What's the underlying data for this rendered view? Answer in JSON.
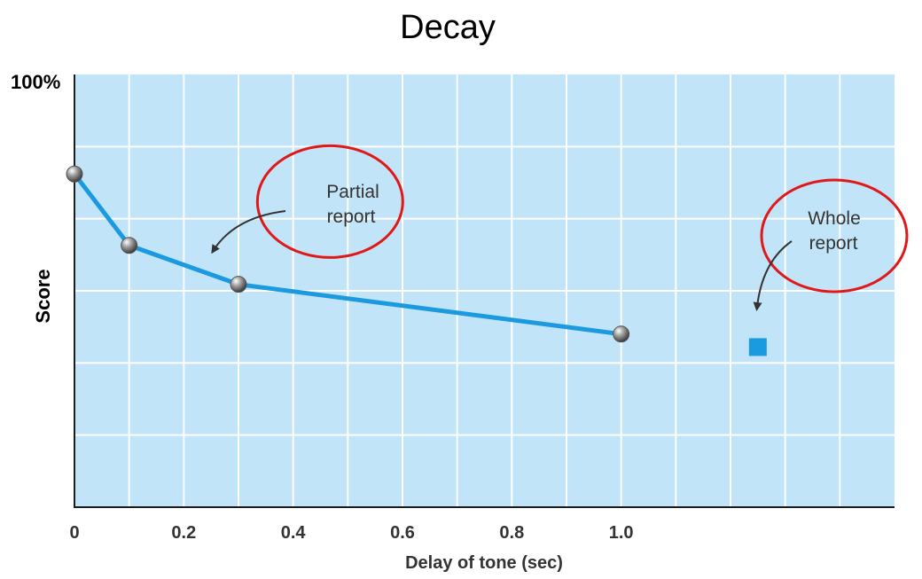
{
  "chart_data": {
    "type": "line",
    "title": "Decay",
    "xlabel": "Delay of tone (sec)",
    "ylabel": "Score",
    "y_top_label": "100%",
    "xlim": [
      0,
      1.5
    ],
    "ylim": [
      0,
      100
    ],
    "x_ticks": [
      {
        "value": 0,
        "label": "0"
      },
      {
        "value": 0.2,
        "label": "0.2"
      },
      {
        "value": 0.4,
        "label": "0.4"
      },
      {
        "value": 0.6,
        "label": "0.6"
      },
      {
        "value": 0.8,
        "label": "0.8"
      },
      {
        "value": 1.0,
        "label": "1.0"
      }
    ],
    "grid": true,
    "series": [
      {
        "name": "Partial report",
        "x": [
          0,
          0.1,
          0.3,
          1.0
        ],
        "values": [
          77,
          60.5,
          51.5,
          40
        ]
      }
    ],
    "whole_report_value": 37,
    "annotations": [
      {
        "text_lines": [
          "Partial",
          "report"
        ],
        "anchor_x": 0.5,
        "anchor_y": 70
      },
      {
        "text_lines": [
          "Whole",
          "report"
        ],
        "anchor_x": 1.4,
        "anchor_y": 63
      }
    ],
    "colors": {
      "plot_background": "#c2e4f9",
      "grid": "#ffffff",
      "line": "#1b9ae0",
      "marker": "#8a8a8a",
      "whole_marker": "#1a9be0",
      "highlight_circle": "#e01818",
      "axis": "#1c1c1c"
    }
  }
}
